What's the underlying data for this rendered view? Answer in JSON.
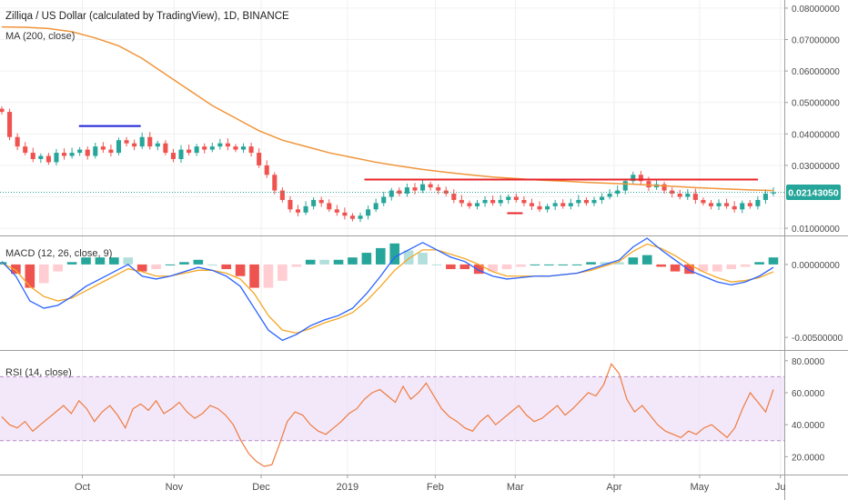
{
  "header": {
    "title": "Zilliqa / US Dollar (calculated by TradingView), 1D, BINANCE",
    "ma_label": "MA (200, close)"
  },
  "colors": {
    "up": "#26a69a",
    "down": "#ef5350",
    "ma": "#f0953a",
    "macd": "#2962ff",
    "signal": "#f5a623",
    "rsi": "#f07b3f",
    "rsi_band": "#e9d8f5",
    "annot_red": "#e8242a",
    "annot_blue": "#1e22d8",
    "price_tag": "#26a69a"
  },
  "x_axis": {
    "labels": [
      "Oct",
      "Nov",
      "Dec",
      "2019",
      "Feb",
      "Mar",
      "Apr",
      "May",
      "Ju"
    ]
  },
  "chart_data": [
    {
      "type": "candlestick",
      "name": "price",
      "ylim": [
        0.008,
        0.082
      ],
      "yticks": [
        "0.08000000",
        "0.07000000",
        "0.06000000",
        "0.05000000",
        "0.04000000",
        "0.03000000",
        "0.01000000"
      ],
      "last_price": "0.02143050",
      "ma_label": "MA (200, close)",
      "close_series": [
        0.047,
        0.039,
        0.036,
        0.034,
        0.032,
        0.033,
        0.031,
        0.034,
        0.033,
        0.034,
        0.035,
        0.033,
        0.036,
        0.035,
        0.034,
        0.038,
        0.037,
        0.036,
        0.039,
        0.036,
        0.037,
        0.034,
        0.032,
        0.035,
        0.034,
        0.036,
        0.035,
        0.036,
        0.037,
        0.036,
        0.035,
        0.036,
        0.034,
        0.03,
        0.027,
        0.022,
        0.019,
        0.016,
        0.015,
        0.017,
        0.019,
        0.018,
        0.016,
        0.015,
        0.014,
        0.013,
        0.014,
        0.016,
        0.018,
        0.02,
        0.022,
        0.021,
        0.023,
        0.022,
        0.024,
        0.023,
        0.022,
        0.021,
        0.019,
        0.018,
        0.017,
        0.018,
        0.019,
        0.018,
        0.019,
        0.02,
        0.019,
        0.018,
        0.017,
        0.016,
        0.017,
        0.018,
        0.017,
        0.018,
        0.019,
        0.018,
        0.019,
        0.02,
        0.021,
        0.022,
        0.025,
        0.027,
        0.025,
        0.023,
        0.024,
        0.022,
        0.021,
        0.02,
        0.021,
        0.019,
        0.018,
        0.017,
        0.018,
        0.017,
        0.016,
        0.018,
        0.017,
        0.019,
        0.021,
        0.0214
      ],
      "ma_series": [
        0.074,
        0.0739,
        0.0735,
        0.0725,
        0.0705,
        0.068,
        0.064,
        0.059,
        0.054,
        0.049,
        0.045,
        0.041,
        0.038,
        0.036,
        0.034,
        0.0325,
        0.031,
        0.0298,
        0.0287,
        0.0278,
        0.027,
        0.0263,
        0.0258,
        0.0253,
        0.025,
        0.0246,
        0.0243,
        0.024,
        0.0236,
        0.0232,
        0.0228,
        0.0225,
        0.0222,
        0.022
      ],
      "annotations": [
        {
          "color": "blue",
          "from": 0.1,
          "to": 0.18,
          "price": 0.0425
        },
        {
          "color": "red",
          "from": 0.47,
          "to": 0.98,
          "price": 0.0255
        },
        {
          "color": "red",
          "from": 0.655,
          "to": 0.675,
          "price": 0.0148
        }
      ]
    },
    {
      "type": "macd",
      "name": "MACD",
      "label": "MACD (12, 26, close, 9)",
      "ylim": [
        -0.0058,
        0.0018
      ],
      "yticks": [
        "0.00000000",
        "-0.00500000"
      ],
      "macd": [
        0.0002,
        -0.0008,
        -0.0025,
        -0.003,
        -0.0028,
        -0.0022,
        -0.0015,
        -0.001,
        -0.0005,
        0.0,
        -0.0008,
        -0.001,
        -0.0008,
        -0.0005,
        -0.0002,
        -0.0004,
        -0.0008,
        -0.0015,
        -0.003,
        -0.0045,
        -0.0052,
        -0.0048,
        -0.0042,
        -0.0038,
        -0.0035,
        -0.003,
        -0.002,
        -0.0008,
        0.0005,
        0.001,
        0.0015,
        0.001,
        0.0005,
        0.0002,
        -0.0004,
        -0.0008,
        -0.001,
        -0.0009,
        -0.0008,
        -0.0008,
        -0.0007,
        -0.0006,
        -0.0003,
        0.0,
        0.0003,
        0.0012,
        0.0018,
        0.001,
        0.0003,
        -0.0004,
        -0.0008,
        -0.0012,
        -0.0014,
        -0.0012,
        -0.0008,
        -0.0002
      ],
      "signal": [
        0.0001,
        -0.0004,
        -0.0015,
        -0.0022,
        -0.0025,
        -0.0023,
        -0.0018,
        -0.0013,
        -0.0008,
        -0.0003,
        -0.0005,
        -0.0008,
        -0.0008,
        -0.0006,
        -0.0004,
        -0.0004,
        -0.0006,
        -0.001,
        -0.002,
        -0.0035,
        -0.0045,
        -0.0047,
        -0.0044,
        -0.004,
        -0.0037,
        -0.0033,
        -0.0025,
        -0.0015,
        -0.0004,
        0.0004,
        0.001,
        0.001,
        0.0007,
        0.0004,
        0.0,
        -0.0005,
        -0.0008,
        -0.0008,
        -0.0008,
        -0.0008,
        -0.0007,
        -0.0006,
        -0.0004,
        -0.0001,
        0.0002,
        0.0009,
        0.0014,
        0.0011,
        0.0006,
        0.0,
        -0.0005,
        -0.0009,
        -0.0012,
        -0.0011,
        -0.0009,
        -0.0005
      ]
    },
    {
      "type": "line",
      "name": "RSI",
      "label": "RSI (14, close)",
      "ylim": [
        10,
        85
      ],
      "yticks": [
        "80.0000",
        "60.0000",
        "40.0000",
        "20.0000"
      ],
      "band": [
        30,
        70
      ],
      "values": [
        45,
        40,
        38,
        42,
        36,
        40,
        44,
        48,
        52,
        47,
        55,
        50,
        42,
        48,
        52,
        46,
        38,
        50,
        53,
        49,
        55,
        47,
        50,
        54,
        48,
        44,
        47,
        52,
        50,
        46,
        40,
        30,
        22,
        17,
        14,
        15,
        28,
        42,
        48,
        46,
        40,
        36,
        34,
        38,
        42,
        47,
        50,
        56,
        60,
        62,
        58,
        54,
        64,
        56,
        60,
        66,
        58,
        50,
        45,
        42,
        38,
        36,
        42,
        46,
        40,
        44,
        48,
        52,
        46,
        42,
        44,
        48,
        52,
        46,
        50,
        55,
        60,
        58,
        65,
        78,
        72,
        56,
        48,
        52,
        46,
        40,
        36,
        34,
        32,
        36,
        34,
        38,
        40,
        36,
        32,
        38,
        50,
        60,
        54,
        48,
        62
      ]
    }
  ]
}
